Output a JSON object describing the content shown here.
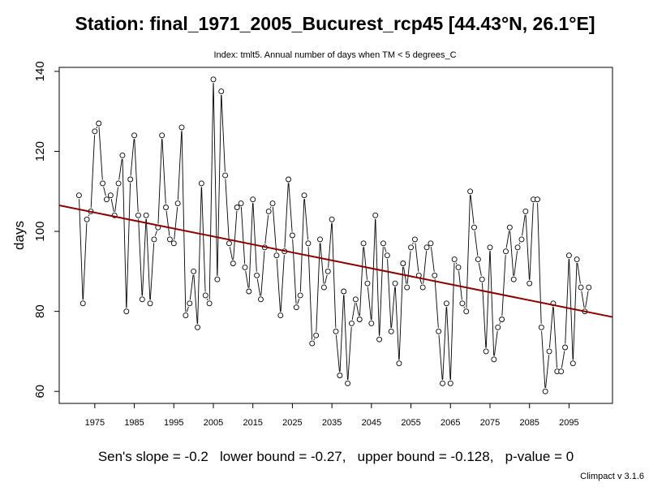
{
  "chart_data": {
    "type": "line",
    "title": "Station: final_1971_2005_Bucurest_rcp45 [44.43°N, 26.1°E]",
    "subtitle": "Index: tmlt5. Annual number of days when TM < 5 degrees_C",
    "xlabel": "",
    "ylabel": "days",
    "xlim": [
      1966,
      2106
    ],
    "ylim": [
      57,
      141
    ],
    "x_ticks": [
      1975,
      1985,
      1995,
      2005,
      2015,
      2025,
      2035,
      2045,
      2055,
      2065,
      2075,
      2085,
      2095
    ],
    "y_ticks": [
      60,
      80,
      100,
      120,
      140
    ],
    "grid": false,
    "series": [
      {
        "x": [
          1971,
          1972,
          1973,
          1974,
          1975,
          1976,
          1977,
          1978,
          1979,
          1980,
          1981,
          1982,
          1983,
          1984,
          1985,
          1986,
          1987,
          1988,
          1989,
          1990,
          1991,
          1992,
          1993,
          1994,
          1995,
          1996,
          1997,
          1998,
          1999,
          2000,
          2001,
          2002,
          2003,
          2004,
          2005,
          2006,
          2007,
          2008,
          2009,
          2010,
          2011,
          2012,
          2013,
          2014,
          2015,
          2016,
          2017,
          2018,
          2019,
          2020,
          2021,
          2022,
          2023,
          2024,
          2025,
          2026,
          2027,
          2028,
          2029,
          2030,
          2031,
          2032,
          2033,
          2034,
          2035,
          2036,
          2037,
          2038,
          2039,
          2040,
          2041,
          2042,
          2043,
          2044,
          2045,
          2046,
          2047,
          2048,
          2049,
          2050,
          2051,
          2052,
          2053,
          2054,
          2055,
          2056,
          2057,
          2058,
          2059,
          2060,
          2061,
          2062,
          2063,
          2064,
          2065,
          2066,
          2067,
          2068,
          2069,
          2070,
          2071,
          2072,
          2073,
          2074,
          2075,
          2076,
          2077,
          2078,
          2079,
          2080,
          2081,
          2082,
          2083,
          2084,
          2085,
          2086,
          2087,
          2088,
          2089,
          2090,
          2091,
          2092,
          2093,
          2094,
          2095,
          2096,
          2097,
          2098,
          2099,
          2100
        ],
        "values": [
          109,
          82,
          103,
          105,
          125,
          127,
          112,
          108,
          109,
          104,
          112,
          119,
          80,
          113,
          124,
          104,
          83,
          104,
          82,
          98,
          101,
          124,
          106,
          98,
          97,
          107,
          126,
          79,
          82,
          90,
          76,
          112,
          84,
          82,
          138,
          88,
          135,
          114,
          97,
          92,
          106,
          107,
          91,
          85,
          108,
          89,
          83,
          96,
          105,
          107,
          94,
          79,
          95,
          113,
          99,
          81,
          84,
          109,
          97,
          72,
          74,
          98,
          86,
          90,
          103,
          75,
          64,
          85,
          62,
          77,
          83,
          78,
          97,
          87,
          77,
          104,
          73,
          97,
          94,
          75,
          87,
          67,
          92,
          86,
          96,
          98,
          89,
          86,
          96,
          97,
          89,
          75,
          62,
          82,
          62,
          93,
          91,
          82,
          80,
          110,
          101,
          93,
          88,
          70,
          96,
          68,
          76,
          78,
          95,
          101,
          88,
          96,
          98,
          105,
          87,
          108,
          108,
          76,
          60,
          70,
          82,
          65,
          65,
          71,
          94,
          67,
          93,
          86,
          80,
          86
        ]
      }
    ],
    "trend": {
      "x": [
        1966,
        2106
      ],
      "y": [
        106.5,
        78.6
      ],
      "color": "#8b0000"
    },
    "footer": "Sen's slope = -0.2   lower bound = -0.27,   upper bound = -0.128,   p-value = 0",
    "version": "Climpact v 3.1.6"
  }
}
